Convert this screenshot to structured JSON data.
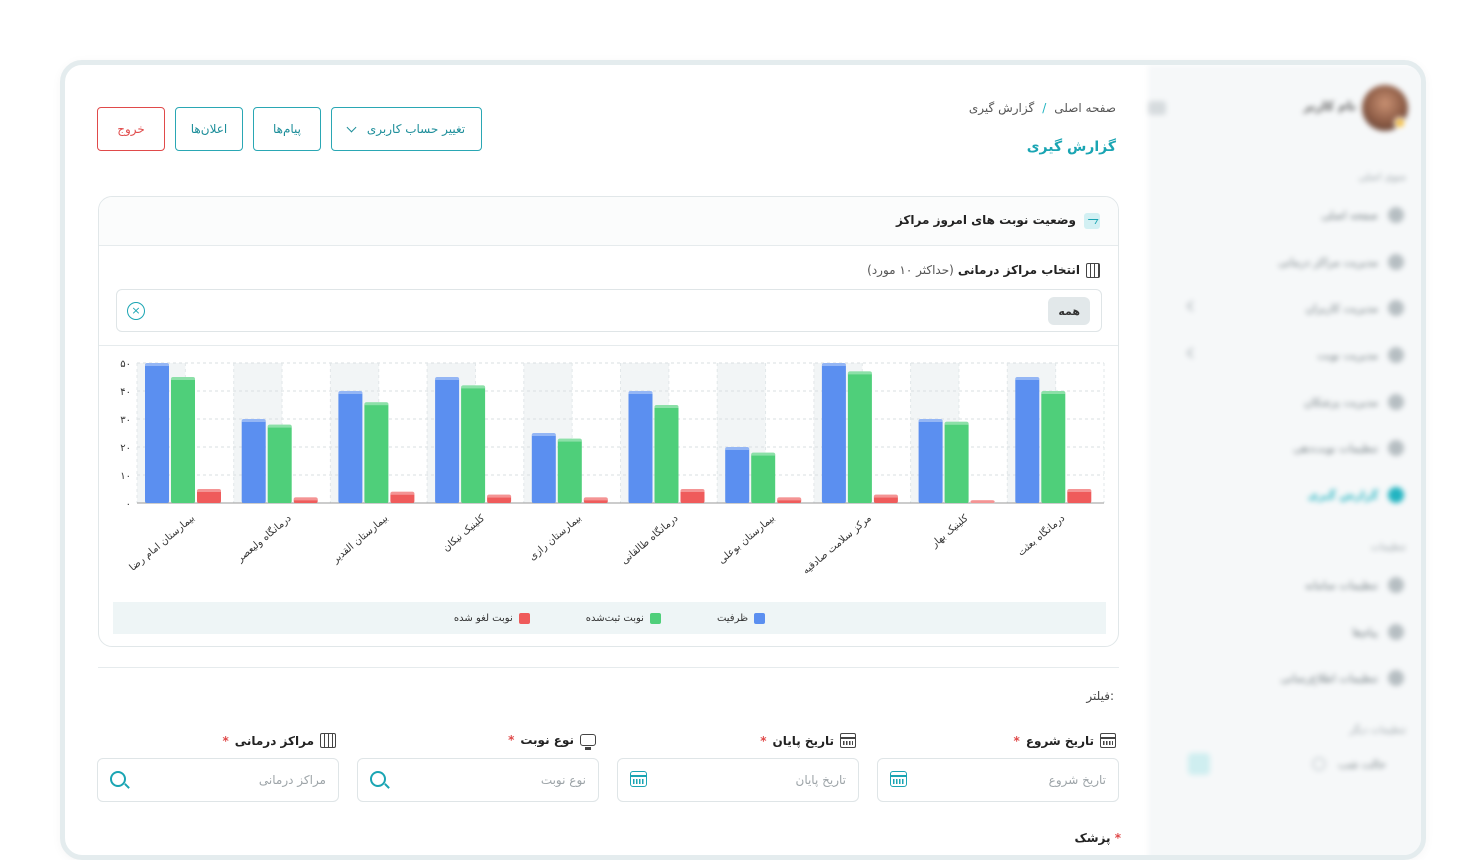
{
  "sidebar": {
    "user_name": "نام کاربر",
    "sections": [
      "منوی اصلی",
      "تنظیمات",
      "تنظیمات دیگر"
    ],
    "items": [
      {
        "label": "صفحه اصلی"
      },
      {
        "label": "مدیریت مراکز درمانی"
      },
      {
        "label": "مدیریت کاربران"
      },
      {
        "label": "مدیریت نوبت"
      },
      {
        "label": "مدیریت پزشکان"
      },
      {
        "label": "تنظیمات نوبت‌دهی"
      },
      {
        "label": "گزارش گیری"
      },
      {
        "label": "تنظیمات سامانه"
      },
      {
        "label": "پیام‌ها"
      },
      {
        "label": "تنظیمات اطلاع‌رسانی"
      }
    ],
    "footer_label": "حالت شب"
  },
  "header": {
    "breadcrumb": [
      "صفحه اصلی",
      "/",
      "گزارش گیری"
    ],
    "page_title": "گزارش گیری",
    "buttons": {
      "switch_account": "تغییر حساب کاربری",
      "messages": "پیام‌ها",
      "notifications": "اعلان‌ها",
      "logout": "خروج"
    }
  },
  "card": {
    "title": "وضعیت نوبت های امروز مراکز",
    "select_label": "انتخاب مراکز درمانی",
    "select_hint": "(حداکثر ۱۰ مورد)",
    "chip": "همه",
    "clear_symbol": "×"
  },
  "chart_data": {
    "type": "bar",
    "categories": [
      "بیمارستان امام رضا",
      "درمانگاه ولیعصر",
      "بیمارستان القدیر",
      "کلینیک نیکان",
      "بیمارستان رازی",
      "درمانگاه طالقانی",
      "بیمارستان بوعلی",
      "مرکز سلامت صادقیه",
      "کلینیک بهار",
      "درمانگاه بعثت"
    ],
    "series": [
      {
        "name": "ظرفیت",
        "color": "#5b8ff0",
        "values": [
          50,
          30,
          40,
          45,
          25,
          40,
          20,
          50,
          30,
          45
        ]
      },
      {
        "name": "نوبت ثبت‌شده",
        "color": "#4fcf7a",
        "values": [
          45,
          28,
          36,
          42,
          23,
          35,
          18,
          47,
          29,
          40
        ]
      },
      {
        "name": "نوبت لغو شده",
        "color": "#ef5b5b",
        "values": [
          5,
          2,
          4,
          3,
          2,
          5,
          2,
          3,
          1,
          5
        ]
      }
    ],
    "yticks": [
      "۰",
      "۱۰",
      "۲۰",
      "۳۰",
      "۴۰",
      "۵۰"
    ],
    "ylim": [
      0,
      50
    ],
    "grid": true,
    "legend": "bottom"
  },
  "filters": {
    "title": "فیلتر:",
    "start_date": {
      "label": "تاریخ شروع",
      "placeholder": "تاریخ شروع"
    },
    "end_date": {
      "label": "تاریخ پایان",
      "placeholder": "تاریخ پایان"
    },
    "appointment_type": {
      "label": "نوع نوبت",
      "placeholder": "نوع نوبت"
    },
    "centers": {
      "label": "مراکز درمانی",
      "placeholder": "مراکز درمانی"
    },
    "required_mark": "*",
    "next_label": "پزشک"
  }
}
